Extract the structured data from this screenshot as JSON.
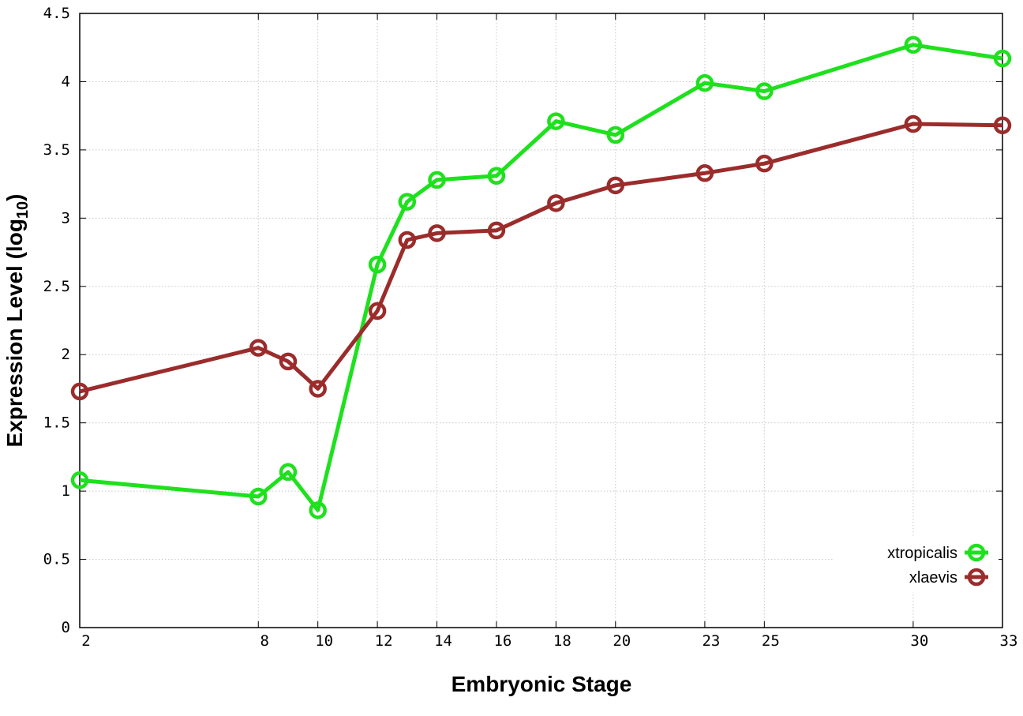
{
  "chart_data": {
    "type": "line",
    "xlabel": "Embryonic Stage",
    "ylabel": {
      "main": "Expression Level (log",
      "sub": "10",
      "close": ")"
    },
    "x_ticks": [
      "2",
      "8",
      "10",
      "12",
      "14",
      "16",
      "18",
      "20",
      "23",
      "25",
      "30",
      "33"
    ],
    "y_ticks": [
      "0",
      "0.5",
      "1",
      "1.5",
      "2",
      "2.5",
      "3",
      "3.5",
      "4",
      "4.5"
    ],
    "xlim": [
      2,
      33
    ],
    "ylim": [
      0,
      4.5
    ],
    "grid": true,
    "legend_position": "bottom-right",
    "series": [
      {
        "name": "xtropicalis",
        "color": "#1ee11e",
        "points": [
          {
            "x": 2,
            "y": 1.08
          },
          {
            "x": 8,
            "y": 0.96
          },
          {
            "x": 9,
            "y": 1.14
          },
          {
            "x": 10,
            "y": 0.86
          },
          {
            "x": 12,
            "y": 2.66
          },
          {
            "x": 13,
            "y": 3.12
          },
          {
            "x": 14,
            "y": 3.28
          },
          {
            "x": 16,
            "y": 3.31
          },
          {
            "x": 18,
            "y": 3.71
          },
          {
            "x": 20,
            "y": 3.61
          },
          {
            "x": 23,
            "y": 3.99
          },
          {
            "x": 25,
            "y": 3.93
          },
          {
            "x": 30,
            "y": 4.27
          },
          {
            "x": 33,
            "y": 4.17
          }
        ]
      },
      {
        "name": "xlaevis",
        "color": "#9b2c2c",
        "points": [
          {
            "x": 2,
            "y": 1.73
          },
          {
            "x": 8,
            "y": 2.05
          },
          {
            "x": 9,
            "y": 1.95
          },
          {
            "x": 10,
            "y": 1.75
          },
          {
            "x": 12,
            "y": 2.32
          },
          {
            "x": 13,
            "y": 2.84
          },
          {
            "x": 14,
            "y": 2.89
          },
          {
            "x": 16,
            "y": 2.91
          },
          {
            "x": 18,
            "y": 3.11
          },
          {
            "x": 20,
            "y": 3.24
          },
          {
            "x": 23,
            "y": 3.33
          },
          {
            "x": 25,
            "y": 3.4
          },
          {
            "x": 30,
            "y": 3.69
          },
          {
            "x": 33,
            "y": 3.68
          }
        ]
      }
    ]
  }
}
